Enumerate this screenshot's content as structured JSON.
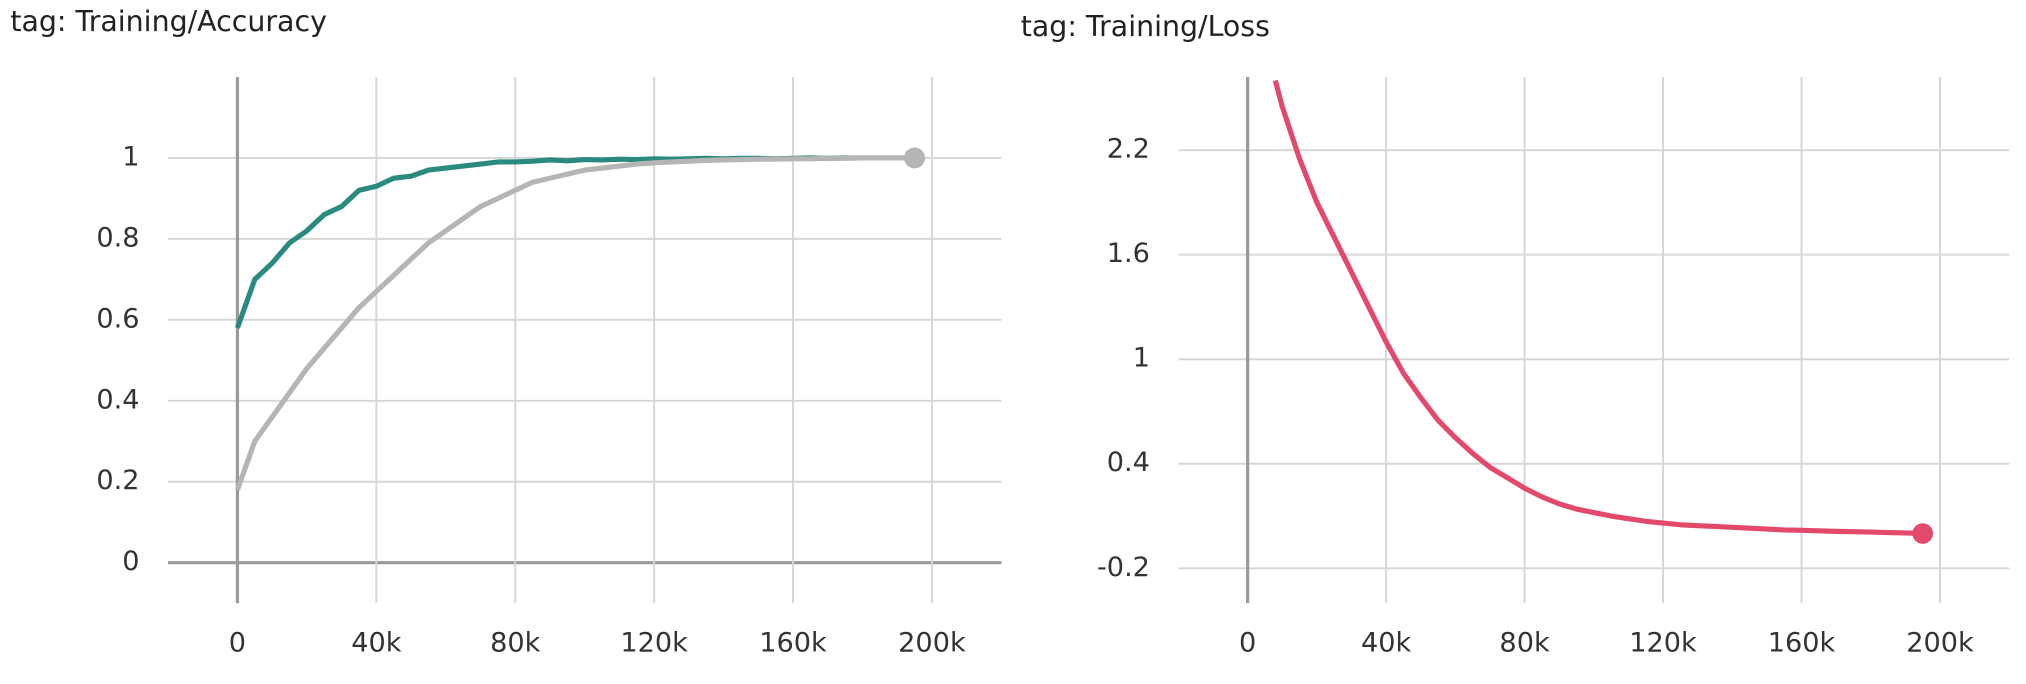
{
  "chart_data": [
    {
      "type": "line",
      "title": "tag: Training/Accuracy",
      "x": [
        0,
        5000,
        10000,
        15000,
        20000,
        25000,
        30000,
        35000,
        40000,
        45000,
        50000,
        55000,
        60000,
        65000,
        70000,
        75000,
        80000,
        85000,
        90000,
        95000,
        100000,
        105000,
        110000,
        115000,
        120000,
        125000,
        130000,
        135000,
        140000,
        145000,
        150000,
        155000,
        160000,
        165000,
        170000,
        175000,
        180000,
        185000,
        190000,
        195000
      ],
      "series": [
        {
          "color": "#2a8a7f",
          "values": [
            0.58,
            0.7,
            0.74,
            0.79,
            0.82,
            0.86,
            0.88,
            0.92,
            0.93,
            0.95,
            0.955,
            0.97,
            0.975,
            0.98,
            0.985,
            0.99,
            0.99,
            0.992,
            0.995,
            0.993,
            0.996,
            0.995,
            0.997,
            0.996,
            0.998,
            0.997,
            0.998,
            0.999,
            0.998,
            0.999,
            0.999,
            0.998,
            0.999,
            1,
            0.999,
            1,
            1,
            1,
            1,
            1
          ]
        },
        {
          "color": "#b5b5b5",
          "values": [
            0.18,
            0.3,
            0.36,
            0.42,
            0.48,
            0.53,
            0.58,
            0.63,
            0.67,
            0.71,
            0.75,
            0.79,
            0.82,
            0.85,
            0.88,
            0.9,
            0.92,
            0.94,
            0.95,
            0.96,
            0.97,
            0.975,
            0.98,
            0.985,
            0.988,
            0.99,
            0.992,
            0.994,
            0.995,
            0.996,
            0.997,
            0.997,
            0.998,
            0.998,
            0.999,
            0.999,
            1,
            1,
            1,
            1
          ]
        }
      ],
      "xlim": [
        -20000,
        220000
      ],
      "xticks": [
        0,
        {
          "value": 40000,
          "label": "40k"
        },
        {
          "value": 80000,
          "label": "80k"
        },
        {
          "value": 120000,
          "label": "120k"
        },
        {
          "value": 160000,
          "label": "160k"
        },
        {
          "value": 200000,
          "label": "200k"
        }
      ],
      "ylim": [
        -0.1,
        1.2
      ],
      "yticks": [
        0,
        0.2,
        0.4,
        0.6,
        0.8,
        1
      ],
      "grid": true
    },
    {
      "type": "line",
      "title": "tag: Training/Loss",
      "x": [
        8000,
        10000,
        15000,
        20000,
        25000,
        30000,
        35000,
        40000,
        45000,
        50000,
        55000,
        60000,
        65000,
        70000,
        75000,
        80000,
        85000,
        90000,
        95000,
        100000,
        105000,
        110000,
        115000,
        120000,
        125000,
        130000,
        135000,
        140000,
        145000,
        150000,
        155000,
        160000,
        165000,
        170000,
        175000,
        180000,
        185000,
        190000,
        195000
      ],
      "series": [
        {
          "color": "#e2496b",
          "values": [
            2.6,
            2.45,
            2.15,
            1.9,
            1.7,
            1.5,
            1.3,
            1.1,
            0.92,
            0.78,
            0.65,
            0.55,
            0.46,
            0.38,
            0.32,
            0.26,
            0.21,
            0.17,
            0.14,
            0.12,
            0.1,
            0.085,
            0.07,
            0.06,
            0.05,
            0.045,
            0.04,
            0.035,
            0.03,
            0.025,
            0.02,
            0.018,
            0.015,
            0.012,
            0.01,
            0.008,
            0.005,
            0.003,
            0
          ]
        }
      ],
      "xlim": [
        -20000,
        220000
      ],
      "xticks": [
        0,
        {
          "value": 40000,
          "label": "40k"
        },
        {
          "value": 80000,
          "label": "80k"
        },
        {
          "value": 120000,
          "label": "120k"
        },
        {
          "value": 160000,
          "label": "160k"
        },
        {
          "value": 200000,
          "label": "200k"
        }
      ],
      "ylim": [
        -0.4,
        2.62
      ],
      "yticks": [
        -0.2,
        0.4,
        1,
        1.6,
        2.2
      ],
      "grid": true
    }
  ]
}
